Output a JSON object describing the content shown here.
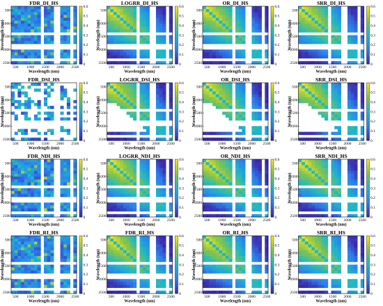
{
  "colors": {
    "low": "#3e26a8",
    "mid_low": "#2d7ef0",
    "mid": "#1fb7c8",
    "mid_high": "#84c54a",
    "high": "#f9e71f",
    "gap": "#ffffff",
    "background": "#ffffff"
  },
  "chart_data": [
    {
      "type": "heatmap",
      "title": "FDR_DI_HS",
      "xlabel": "Wavelength (nm)",
      "ylabel": "Wavelength (nm)",
      "x_ticks": [
        500,
        1000,
        1500,
        2000,
        2500
      ],
      "y_ticks": [
        500,
        1000,
        1500,
        2000,
        2500
      ],
      "colorbar_ticks": [
        0,
        0.1,
        0.2,
        0.3,
        0.4,
        0.5,
        0.6
      ],
      "clim": [
        0,
        0.6
      ],
      "pattern": "noisy"
    },
    {
      "type": "heatmap",
      "title": "LOGRR_DI_HS",
      "xlabel": "Wavelength (nm)",
      "ylabel": "Wavelength (nm)",
      "x_ticks": [
        500,
        1000,
        1500,
        2000,
        2500
      ],
      "y_ticks": [
        500,
        1000,
        1500,
        2000,
        2500
      ],
      "colorbar_ticks": [
        0,
        0.1,
        0.2,
        0.3,
        0.4,
        0.5,
        0.6
      ],
      "clim": [
        0,
        0.6
      ],
      "pattern": "gradient"
    },
    {
      "type": "heatmap",
      "title": "OR_DI_HS",
      "xlabel": "Wavelength (nm)",
      "ylabel": "Wavelength (nm)",
      "x_ticks": [
        500,
        1000,
        1500,
        2000,
        2500
      ],
      "y_ticks": [
        500,
        1000,
        1500,
        2000,
        2500
      ],
      "colorbar_ticks": [
        0,
        0.1,
        0.2,
        0.3,
        0.4,
        0.5,
        0.6
      ],
      "clim": [
        0,
        0.6
      ],
      "pattern": "gradient"
    },
    {
      "type": "heatmap",
      "title": "SRR_DI_HS",
      "xlabel": "Wavelength (nm)",
      "ylabel": "Wavelength (nm)",
      "x_ticks": [
        500,
        1000,
        1500,
        2000,
        2500
      ],
      "y_ticks": [
        500,
        1000,
        1500,
        2000,
        2500
      ],
      "colorbar_ticks": [
        0,
        0.1,
        0.2,
        0.3,
        0.4,
        0.5,
        0.6
      ],
      "clim": [
        0,
        0.6
      ],
      "pattern": "gradient"
    },
    {
      "type": "heatmap",
      "title": "FDR_DSI_HS",
      "xlabel": "Wavelength (nm)",
      "ylabel": "Wavelength (nm)",
      "x_ticks": [
        500,
        1000,
        1500,
        2000,
        2500
      ],
      "y_ticks": [
        500,
        1000,
        1500,
        2000,
        2500
      ],
      "colorbar_ticks": [
        0,
        0.1,
        0.2,
        0.3,
        0.4,
        0.5,
        0.6
      ],
      "clim": [
        0,
        0.6
      ],
      "pattern": "sparse"
    },
    {
      "type": "heatmap",
      "title": "LOGRR_DSI_HS",
      "xlabel": "Wavelength (nm)",
      "ylabel": "Wavelength (nm)",
      "x_ticks": [
        500,
        1000,
        1500,
        2000,
        2500
      ],
      "y_ticks": [
        500,
        1000,
        1500,
        2000,
        2500
      ],
      "colorbar_ticks": [
        0,
        0.1,
        0.2,
        0.3,
        0.4,
        0.5,
        0.6
      ],
      "clim": [
        0,
        0.6
      ],
      "pattern": "masked"
    },
    {
      "type": "heatmap",
      "title": "OR_DSI_HS",
      "xlabel": "Wavelength (nm)",
      "ylabel": "Wavelength (nm)",
      "x_ticks": [
        500,
        1000,
        1500,
        2000,
        2500
      ],
      "y_ticks": [
        500,
        1000,
        1500,
        2000,
        2500
      ],
      "colorbar_ticks": [
        0,
        0.1,
        0.2,
        0.3,
        0.4,
        0.5,
        0.6
      ],
      "clim": [
        0,
        0.6
      ],
      "pattern": "masked"
    },
    {
      "type": "heatmap",
      "title": "SRR_DSI_HS",
      "xlabel": "Wavelength (nm)",
      "ylabel": "Wavelength (nm)",
      "x_ticks": [
        500,
        1000,
        1500,
        2000,
        2500
      ],
      "y_ticks": [
        500,
        1000,
        1500,
        2000,
        2500
      ],
      "colorbar_ticks": [
        0,
        0.1,
        0.2,
        0.3,
        0.4,
        0.5,
        0.6
      ],
      "clim": [
        0,
        0.6
      ],
      "pattern": "masked"
    },
    {
      "type": "heatmap",
      "title": "FDR_NDI_HS",
      "xlabel": "Wavelength (nm)",
      "ylabel": "Wavelength (nm)",
      "x_ticks": [
        500,
        1000,
        1500,
        2000,
        2500
      ],
      "y_ticks": [
        500,
        1000,
        1500,
        2000,
        2500
      ],
      "colorbar_ticks": [
        0,
        0.1,
        0.2,
        0.3,
        0.4,
        0.5,
        0.6
      ],
      "clim": [
        0,
        0.6
      ],
      "pattern": "noisy"
    },
    {
      "type": "heatmap",
      "title": "LOGRR_NDI_HS",
      "xlabel": "Wavelength (nm)",
      "ylabel": "Wavelength (nm)",
      "x_ticks": [
        500,
        1000,
        1500,
        2000,
        2500
      ],
      "y_ticks": [
        500,
        1000,
        1500,
        2000,
        2500
      ],
      "colorbar_ticks": [
        0,
        0.1,
        0.2,
        0.3,
        0.4,
        0.5,
        0.6
      ],
      "clim": [
        0,
        0.6
      ],
      "pattern": "gradient"
    },
    {
      "type": "heatmap",
      "title": "OR_NDI_HS",
      "xlabel": "Wavelength (nm)",
      "ylabel": "Wavelength (nm)",
      "x_ticks": [
        500,
        1000,
        1500,
        2000,
        2500
      ],
      "y_ticks": [
        500,
        1000,
        1500,
        2000,
        2500
      ],
      "colorbar_ticks": [
        0,
        0.1,
        0.2,
        0.3,
        0.4,
        0.5,
        0.6
      ],
      "clim": [
        0,
        0.6
      ],
      "pattern": "gradient"
    },
    {
      "type": "heatmap",
      "title": "SRR_NDI_HS",
      "xlabel": "Wavelength (nm)",
      "ylabel": "Wavelength (nm)",
      "x_ticks": [
        500,
        1000,
        1500,
        2000,
        2500
      ],
      "y_ticks": [
        500,
        1000,
        1500,
        2000,
        2500
      ],
      "colorbar_ticks": [
        0,
        0.1,
        0.2,
        0.3,
        0.4,
        0.5,
        0.6
      ],
      "clim": [
        0,
        0.6
      ],
      "pattern": "gradient"
    },
    {
      "type": "heatmap",
      "title": "FDR_RI_HS",
      "xlabel": "Wavelength (nm)",
      "ylabel": "Wavelength (nm)",
      "x_ticks": [
        500,
        1000,
        1500,
        2000,
        2500
      ],
      "y_ticks": [
        500,
        1000,
        1500,
        2000,
        2500
      ],
      "colorbar_ticks": [
        0,
        0.1,
        0.2,
        0.3,
        0.4,
        0.5,
        0.6
      ],
      "clim": [
        0,
        0.6
      ],
      "pattern": "noisy"
    },
    {
      "type": "heatmap",
      "title": "FDR_RI_HS",
      "xlabel": "Wavelength (nm)",
      "ylabel": "Wavelength (nm)",
      "x_ticks": [
        500,
        1000,
        1500,
        2000,
        2500
      ],
      "y_ticks": [
        500,
        1000,
        1500,
        2000,
        2500
      ],
      "colorbar_ticks": [
        0,
        0.1,
        0.2,
        0.3,
        0.4,
        0.5,
        0.6
      ],
      "clim": [
        0,
        0.6
      ],
      "pattern": "gradient"
    },
    {
      "type": "heatmap",
      "title": "OR_RI_HS",
      "xlabel": "Wavelength (nm)",
      "ylabel": "Wavelength (nm)",
      "x_ticks": [
        500,
        1000,
        1500,
        2000,
        2500
      ],
      "y_ticks": [
        500,
        1000,
        1500,
        2000,
        2500
      ],
      "colorbar_ticks": [
        0,
        0.1,
        0.2,
        0.3,
        0.4,
        0.5,
        0.6
      ],
      "clim": [
        0,
        0.6
      ],
      "pattern": "gradient"
    },
    {
      "type": "heatmap",
      "title": "SRR_RI_HS",
      "xlabel": "Wavelength (nm)",
      "ylabel": "Wavelength (nm)",
      "x_ticks": [
        500,
        1000,
        1500,
        2000,
        2500
      ],
      "y_ticks": [
        500,
        1000,
        1500,
        2000,
        2500
      ],
      "colorbar_ticks": [
        0,
        0.1,
        0.2,
        0.3,
        0.4,
        0.5,
        0.6
      ],
      "clim": [
        0,
        0.6
      ],
      "pattern": "gradient"
    }
  ]
}
